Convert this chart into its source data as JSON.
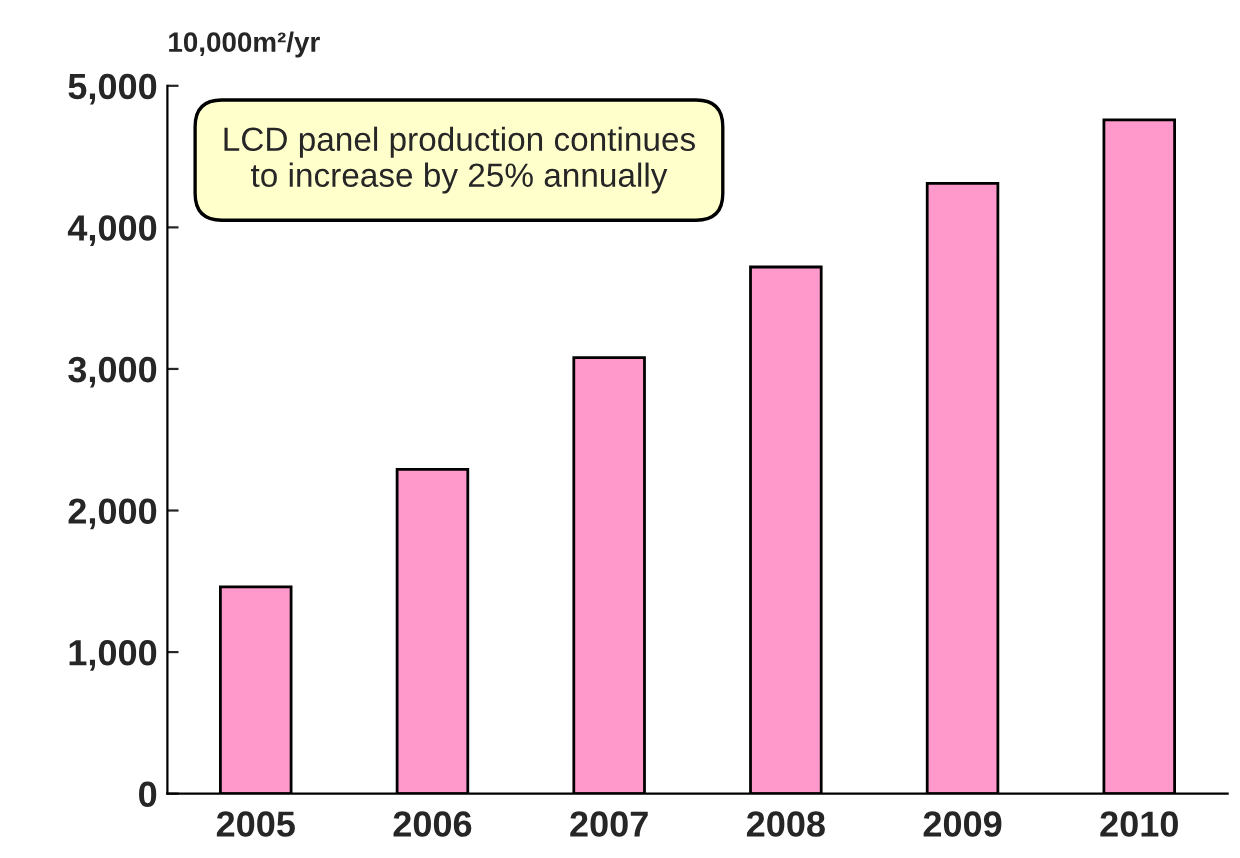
{
  "chart_data": {
    "type": "bar",
    "ylabel": "10,000m²/yr",
    "categories": [
      "2005",
      "2006",
      "2007",
      "2008",
      "2009",
      "2010"
    ],
    "values": [
      1460,
      2290,
      3080,
      3720,
      4310,
      4760
    ],
    "color": "#ff99cc",
    "ylim": [
      0,
      5000
    ],
    "yticks": [
      0,
      {
        "value": 1000,
        "label": "1,000"
      },
      {
        "value": 2000,
        "label": "2,000"
      },
      {
        "value": 3000,
        "label": "3,000"
      },
      {
        "value": 4000,
        "label": "4,000"
      },
      {
        "value": 5000,
        "label": "5,000"
      }
    ],
    "annotations": [
      "LCD panel production continues\nto increase by 25% annually"
    ],
    "grid": false
  }
}
